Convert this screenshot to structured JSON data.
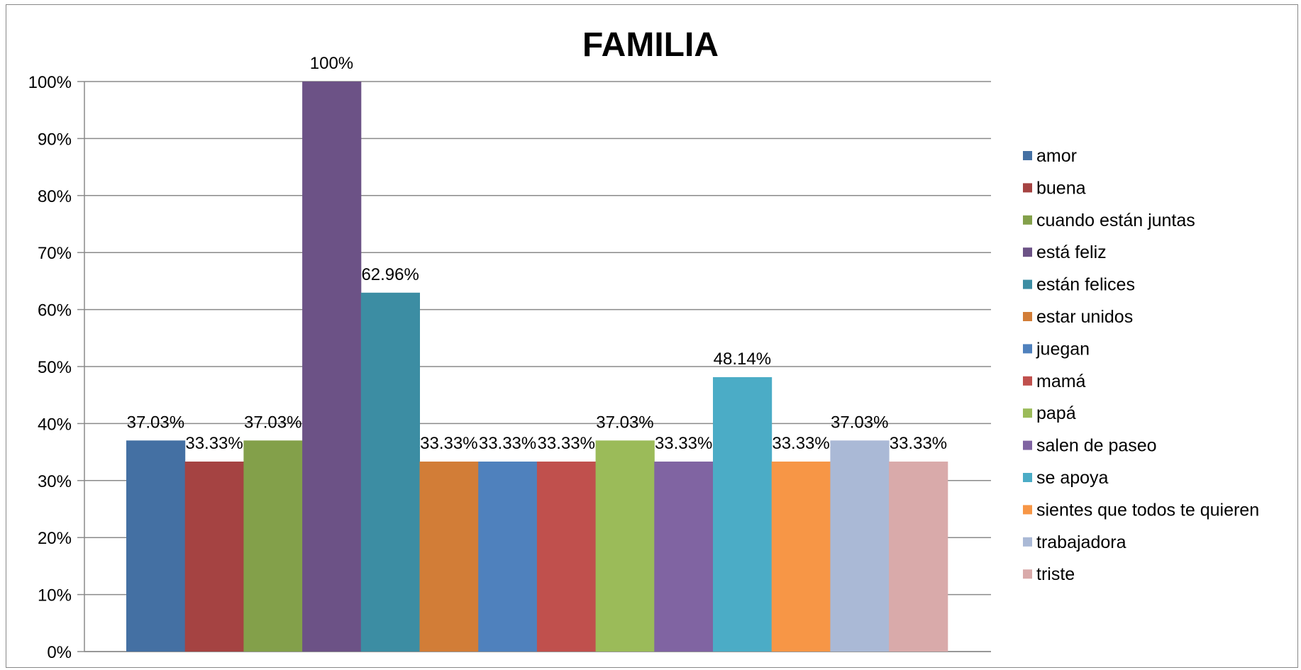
{
  "chart_data": {
    "type": "bar",
    "title": "FAMILIA",
    "xlabel": "",
    "ylabel": "",
    "ylim": [
      0,
      100
    ],
    "yticks": [
      "0%",
      "10%",
      "20%",
      "30%",
      "40%",
      "50%",
      "60%",
      "70%",
      "80%",
      "90%",
      "100%"
    ],
    "grid": true,
    "legend_position": "right",
    "series": [
      {
        "name": "amor",
        "value": 37.03,
        "label": "37.03%",
        "color": "#4470A3"
      },
      {
        "name": "buena",
        "value": 33.33,
        "label": "33.33%",
        "color": "#A54342"
      },
      {
        "name": "cuando están juntas",
        "value": 37.03,
        "label": "37.03%",
        "color": "#83A04A"
      },
      {
        "name": "está feliz",
        "value": 100,
        "label": "100%",
        "color": "#6C5286"
      },
      {
        "name": "están felices",
        "value": 62.96,
        "label": "62.96%",
        "color": "#3C8DA3"
      },
      {
        "name": "estar unidos",
        "value": 33.33,
        "label": "33.33%",
        "color": "#D27D37"
      },
      {
        "name": "juegan",
        "value": 33.33,
        "label": "33.33%",
        "color": "#4F81BD"
      },
      {
        "name": "mamá",
        "value": 33.33,
        "label": "33.33%",
        "color": "#C0504D"
      },
      {
        "name": "papá",
        "value": 37.03,
        "label": "37.03%",
        "color": "#9BBB59"
      },
      {
        "name": "salen de paseo",
        "value": 33.33,
        "label": "33.33%",
        "color": "#8064A2"
      },
      {
        "name": "se apoya",
        "value": 48.14,
        "label": "48.14%",
        "color": "#4BACC6"
      },
      {
        "name": "sientes que todos te quieren",
        "value": 33.33,
        "label": "33.33%",
        "color": "#F79646"
      },
      {
        "name": "trabajadora",
        "value": 37.03,
        "label": "37.03%",
        "color": "#AAB9D6"
      },
      {
        "name": "triste",
        "value": 33.33,
        "label": "33.33%",
        "color": "#D9AAAA"
      }
    ]
  }
}
